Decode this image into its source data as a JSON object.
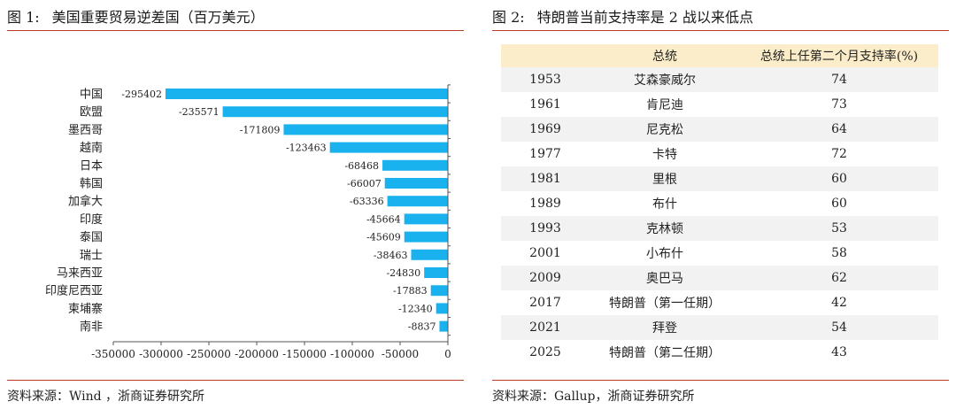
{
  "left": {
    "figure_num": "图 1:",
    "title": "美国重要贸易逆差国（百万美元）",
    "source": "资料来源：Wind ，浙商证券研究所"
  },
  "right": {
    "figure_num": "图 2:",
    "title": "特朗普当前支持率是 2 战以来低点",
    "source": "资料来源：Gallup，浙商证券研究所",
    "table": {
      "headers": [
        "",
        "总统",
        "总统上任第二个月支持率(%)"
      ],
      "rows": [
        [
          "1953",
          "艾森豪威尔",
          "74"
        ],
        [
          "1961",
          "肯尼迪",
          "73"
        ],
        [
          "1969",
          "尼克松",
          "64"
        ],
        [
          "1977",
          "卡特",
          "72"
        ],
        [
          "1981",
          "里根",
          "60"
        ],
        [
          "1989",
          "布什",
          "60"
        ],
        [
          "1993",
          "克林顿",
          "53"
        ],
        [
          "2001",
          "小布什",
          "58"
        ],
        [
          "2009",
          "奥巴马",
          "62"
        ],
        [
          "2017",
          "特朗普（第一任期）",
          "42"
        ],
        [
          "2021",
          "拜登",
          "54"
        ],
        [
          "2025",
          "特朗普（第二任期）",
          "43"
        ]
      ]
    }
  },
  "colors": {
    "bar": "#1ab2ee",
    "rule": "#c0392b",
    "header_bg": "#fbedc9",
    "alt_row": "#f2f2f2"
  },
  "chart_data": {
    "type": "bar",
    "orientation": "horizontal",
    "categories": [
      "中国",
      "欧盟",
      "墨西哥",
      "越南",
      "日本",
      "韩国",
      "加拿大",
      "印度",
      "泰国",
      "瑞士",
      "马来西亚",
      "印度尼西亚",
      "柬埔寨",
      "南非"
    ],
    "values": [
      -295402,
      -235571,
      -171809,
      -123463,
      -68468,
      -66007,
      -63336,
      -45664,
      -45609,
      -38463,
      -24830,
      -17883,
      -12340,
      -8837
    ],
    "xlim": [
      -350000,
      0
    ],
    "xticks": [
      -350000,
      -300000,
      -250000,
      -200000,
      -150000,
      -100000,
      -50000,
      0
    ],
    "data_labels": true,
    "grid": false
  }
}
